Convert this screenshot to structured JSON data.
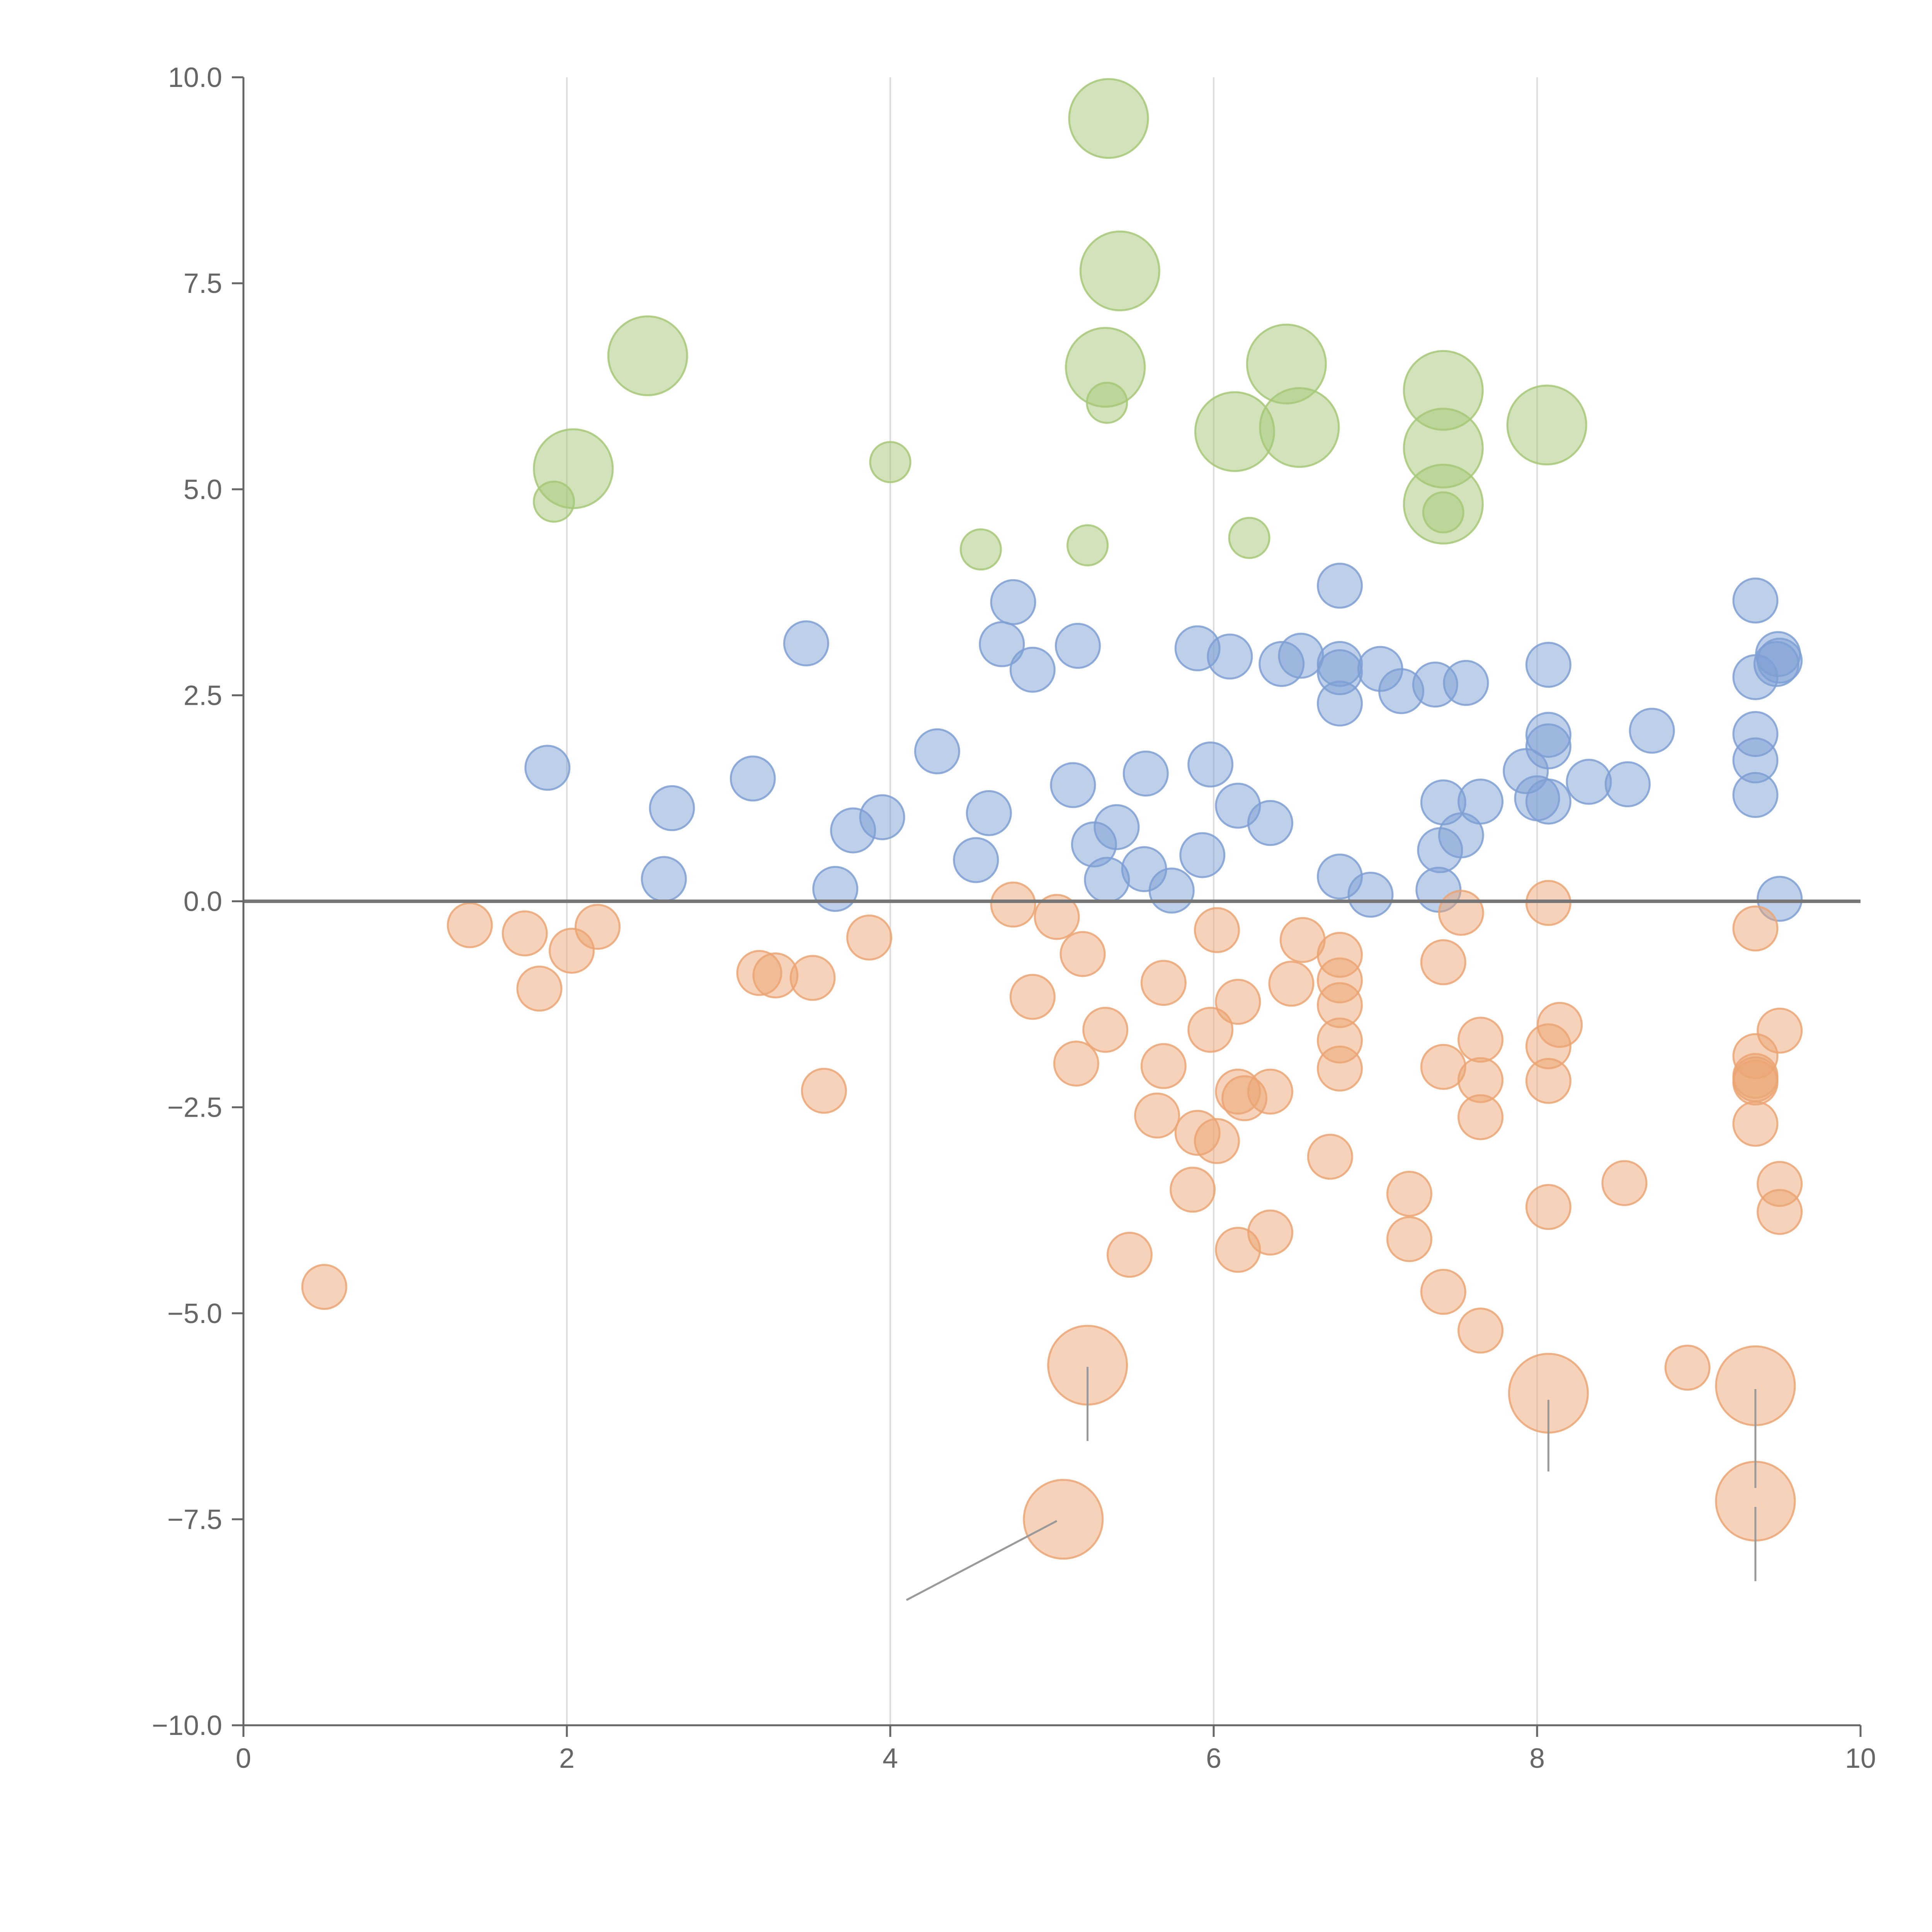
{
  "chart_data": {
    "type": "scatter",
    "title": "",
    "xlabel": "",
    "ylabel": "",
    "xlim": [
      0,
      10
    ],
    "ylim": [
      -10,
      10
    ],
    "x_ticks": [
      0,
      2,
      4,
      6,
      8,
      10
    ],
    "y_ticks": [
      -10,
      -7.5,
      -5,
      -2.5,
      0,
      2.5,
      5,
      7.5,
      10
    ],
    "x_tick_labels": [
      "0",
      "2",
      "4",
      "6",
      "8",
      "10"
    ],
    "y_tick_labels": [
      "−10.0",
      "−7.5",
      "−5.0",
      "−2.5",
      "0.0",
      "2.5",
      "5.0",
      "7.5",
      "10.0"
    ],
    "grid": "vertical",
    "zero_line": 0,
    "colors": {
      "green": "#a6c877",
      "blue": "#7e9fd3",
      "orange": "#eba573",
      "axis": "#666666",
      "grid": "#dddddd",
      "zero_line": "#777777"
    },
    "series": [
      {
        "name": "green",
        "color": "#a6c877",
        "points": [
          {
            "x": 5.35,
            "y": 9.5,
            "size": "large"
          },
          {
            "x": 5.42,
            "y": 7.65,
            "size": "large"
          },
          {
            "x": 2.5,
            "y": 6.62,
            "size": "large"
          },
          {
            "x": 5.33,
            "y": 6.48,
            "size": "large"
          },
          {
            "x": 6.45,
            "y": 6.52,
            "size": "large"
          },
          {
            "x": 7.42,
            "y": 6.2,
            "size": "large"
          },
          {
            "x": 8.06,
            "y": 5.78,
            "size": "large"
          },
          {
            "x": 6.13,
            "y": 5.7,
            "size": "large"
          },
          {
            "x": 6.53,
            "y": 5.75,
            "size": "large"
          },
          {
            "x": 7.42,
            "y": 5.5,
            "size": "large"
          },
          {
            "x": 2.04,
            "y": 5.25,
            "size": "large"
          },
          {
            "x": 7.42,
            "y": 4.82,
            "size": "large"
          },
          {
            "x": 5.34,
            "y": 6.05,
            "size": "small"
          },
          {
            "x": 4.0,
            "y": 5.33,
            "size": "small"
          },
          {
            "x": 1.92,
            "y": 4.85,
            "size": "small"
          },
          {
            "x": 7.42,
            "y": 4.72,
            "size": "small"
          },
          {
            "x": 4.56,
            "y": 4.27,
            "size": "small"
          },
          {
            "x": 5.22,
            "y": 4.32,
            "size": "small"
          },
          {
            "x": 6.22,
            "y": 4.41,
            "size": "small"
          }
        ]
      },
      {
        "name": "blue",
        "color": "#7e9fd3",
        "points": [
          {
            "x": 6.78,
            "y": 3.83
          },
          {
            "x": 9.35,
            "y": 3.65
          },
          {
            "x": 4.76,
            "y": 3.63
          },
          {
            "x": 3.48,
            "y": 3.13
          },
          {
            "x": 4.69,
            "y": 3.12
          },
          {
            "x": 5.16,
            "y": 3.1
          },
          {
            "x": 5.9,
            "y": 3.07
          },
          {
            "x": 6.1,
            "y": 2.97
          },
          {
            "x": 6.54,
            "y": 2.98
          },
          {
            "x": 9.49,
            "y": 3.0
          },
          {
            "x": 9.5,
            "y": 2.92
          },
          {
            "x": 9.48,
            "y": 2.88
          },
          {
            "x": 6.42,
            "y": 2.88
          },
          {
            "x": 6.78,
            "y": 2.88
          },
          {
            "x": 6.78,
            "y": 2.78
          },
          {
            "x": 8.07,
            "y": 2.87
          },
          {
            "x": 4.88,
            "y": 2.81
          },
          {
            "x": 7.03,
            "y": 2.82
          },
          {
            "x": 9.35,
            "y": 2.72
          },
          {
            "x": 7.37,
            "y": 2.63
          },
          {
            "x": 7.56,
            "y": 2.65
          },
          {
            "x": 7.16,
            "y": 2.55
          },
          {
            "x": 6.78,
            "y": 2.4
          },
          {
            "x": 8.71,
            "y": 2.07
          },
          {
            "x": 8.07,
            "y": 2.02
          },
          {
            "x": 9.35,
            "y": 2.03
          },
          {
            "x": 8.07,
            "y": 1.88
          },
          {
            "x": 4.29,
            "y": 1.82
          },
          {
            "x": 1.88,
            "y": 1.62
          },
          {
            "x": 5.98,
            "y": 1.66
          },
          {
            "x": 9.35,
            "y": 1.71
          },
          {
            "x": 7.93,
            "y": 1.58
          },
          {
            "x": 5.58,
            "y": 1.55
          },
          {
            "x": 3.15,
            "y": 1.49
          },
          {
            "x": 8.32,
            "y": 1.45
          },
          {
            "x": 8.56,
            "y": 1.42
          },
          {
            "x": 5.13,
            "y": 1.41
          },
          {
            "x": 9.35,
            "y": 1.29
          },
          {
            "x": 8.0,
            "y": 1.25
          },
          {
            "x": 8.07,
            "y": 1.21
          },
          {
            "x": 7.42,
            "y": 1.2
          },
          {
            "x": 7.65,
            "y": 1.21
          },
          {
            "x": 6.15,
            "y": 1.16
          },
          {
            "x": 2.65,
            "y": 1.13
          },
          {
            "x": 4.61,
            "y": 1.07
          },
          {
            "x": 3.95,
            "y": 1.02
          },
          {
            "x": 6.35,
            "y": 0.95
          },
          {
            "x": 5.4,
            "y": 0.9
          },
          {
            "x": 3.77,
            "y": 0.86
          },
          {
            "x": 7.53,
            "y": 0.8
          },
          {
            "x": 5.26,
            "y": 0.69
          },
          {
            "x": 7.4,
            "y": 0.62
          },
          {
            "x": 5.93,
            "y": 0.56
          },
          {
            "x": 4.53,
            "y": 0.5
          },
          {
            "x": 5.57,
            "y": 0.39
          },
          {
            "x": 6.78,
            "y": 0.3
          },
          {
            "x": 2.6,
            "y": 0.27
          },
          {
            "x": 5.34,
            "y": 0.26
          },
          {
            "x": 3.66,
            "y": 0.15
          },
          {
            "x": 5.74,
            "y": 0.13
          },
          {
            "x": 7.39,
            "y": 0.14
          },
          {
            "x": 6.97,
            "y": 0.08
          },
          {
            "x": 9.5,
            "y": 0.03
          }
        ]
      },
      {
        "name": "orange",
        "color": "#eba573",
        "points": [
          {
            "x": 4.76,
            "y": -0.04
          },
          {
            "x": 8.07,
            "y": -0.02
          },
          {
            "x": 7.53,
            "y": -0.14
          },
          {
            "x": 5.03,
            "y": -0.19
          },
          {
            "x": 1.4,
            "y": -0.29
          },
          {
            "x": 2.19,
            "y": -0.31
          },
          {
            "x": 9.35,
            "y": -0.33
          },
          {
            "x": 6.02,
            "y": -0.35
          },
          {
            "x": 1.74,
            "y": -0.39
          },
          {
            "x": 3.87,
            "y": -0.44
          },
          {
            "x": 6.55,
            "y": -0.47
          },
          {
            "x": 2.03,
            "y": -0.6
          },
          {
            "x": 5.19,
            "y": -0.64
          },
          {
            "x": 6.78,
            "y": -0.65
          },
          {
            "x": 7.42,
            "y": -0.74
          },
          {
            "x": 3.19,
            "y": -0.87
          },
          {
            "x": 3.29,
            "y": -0.9
          },
          {
            "x": 3.52,
            "y": -0.93
          },
          {
            "x": 6.78,
            "y": -0.96
          },
          {
            "x": 5.69,
            "y": -0.99
          },
          {
            "x": 6.48,
            "y": -1.0
          },
          {
            "x": 1.83,
            "y": -1.06
          },
          {
            "x": 4.88,
            "y": -1.16
          },
          {
            "x": 6.15,
            "y": -1.22
          },
          {
            "x": 6.78,
            "y": -1.26
          },
          {
            "x": 8.14,
            "y": -1.5
          },
          {
            "x": 5.33,
            "y": -1.56
          },
          {
            "x": 5.98,
            "y": -1.56
          },
          {
            "x": 9.5,
            "y": -1.57
          },
          {
            "x": 7.65,
            "y": -1.68
          },
          {
            "x": 6.78,
            "y": -1.69
          },
          {
            "x": 8.07,
            "y": -1.76
          },
          {
            "x": 9.35,
            "y": -1.88
          },
          {
            "x": 5.15,
            "y": -1.97
          },
          {
            "x": 5.69,
            "y": -2.0
          },
          {
            "x": 7.42,
            "y": -2.01
          },
          {
            "x": 6.78,
            "y": -2.03
          },
          {
            "x": 9.35,
            "y": -2.12
          },
          {
            "x": 9.35,
            "y": -2.16
          },
          {
            "x": 8.07,
            "y": -2.18
          },
          {
            "x": 7.65,
            "y": -2.17
          },
          {
            "x": 9.35,
            "y": -2.2
          },
          {
            "x": 3.59,
            "y": -2.3
          },
          {
            "x": 6.15,
            "y": -2.31
          },
          {
            "x": 6.35,
            "y": -2.31
          },
          {
            "x": 6.19,
            "y": -2.39
          },
          {
            "x": 5.65,
            "y": -2.6
          },
          {
            "x": 7.65,
            "y": -2.62
          },
          {
            "x": 9.35,
            "y": -2.7
          },
          {
            "x": 5.9,
            "y": -2.81
          },
          {
            "x": 6.02,
            "y": -2.91
          },
          {
            "x": 6.72,
            "y": -3.1
          },
          {
            "x": 8.54,
            "y": -3.42
          },
          {
            "x": 9.5,
            "y": -3.43
          },
          {
            "x": 5.87,
            "y": -3.5
          },
          {
            "x": 7.21,
            "y": -3.55
          },
          {
            "x": 8.07,
            "y": -3.71
          },
          {
            "x": 9.5,
            "y": -3.77
          },
          {
            "x": 6.35,
            "y": -4.02
          },
          {
            "x": 7.21,
            "y": -4.1
          },
          {
            "x": 6.15,
            "y": -4.23
          },
          {
            "x": 5.48,
            "y": -4.29
          },
          {
            "x": 0.5,
            "y": -4.68
          },
          {
            "x": 7.42,
            "y": -4.74
          },
          {
            "x": 7.65,
            "y": -5.21
          },
          {
            "x": 8.93,
            "y": -5.66
          },
          {
            "x": 5.22,
            "y": -5.63,
            "size": "large"
          },
          {
            "x": 9.35,
            "y": -5.88,
            "size": "large"
          },
          {
            "x": 8.07,
            "y": -5.97,
            "size": "large"
          },
          {
            "x": 9.35,
            "y": -7.28,
            "size": "large"
          },
          {
            "x": 5.07,
            "y": -7.5,
            "size": "large"
          }
        ]
      }
    ],
    "callout_lines": [
      {
        "from": [
          5.22,
          -5.65
        ],
        "to": [
          5.22,
          -6.55
        ]
      },
      {
        "from": [
          8.07,
          -6.05
        ],
        "to": [
          8.07,
          -6.92
        ]
      },
      {
        "from": [
          9.35,
          -5.92
        ],
        "to": [
          9.35,
          -7.12
        ]
      },
      {
        "from": [
          9.35,
          -7.35
        ],
        "to": [
          9.35,
          -8.25
        ]
      },
      {
        "from": [
          5.03,
          -7.52
        ],
        "to": [
          4.1,
          -8.48
        ]
      }
    ]
  }
}
